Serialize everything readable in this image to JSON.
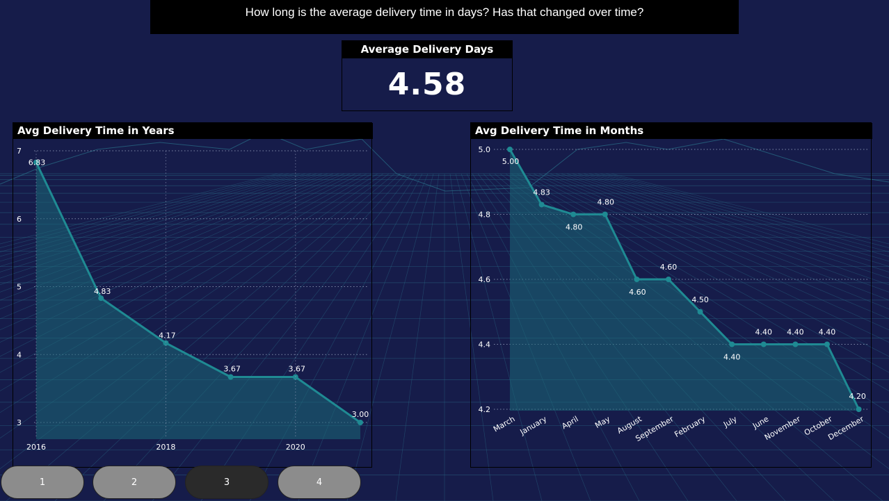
{
  "header": {
    "question": "How long is the average delivery time in days? Has that changed over time?"
  },
  "kpi": {
    "title": "Average Delivery Days",
    "value": "4.58"
  },
  "colors": {
    "background": "#161c4a",
    "line": "#1f8a93",
    "area": "#1c6a78",
    "grid": "#9aa3c0",
    "button": "#8c8c8c",
    "button_active": "#2a2a2a"
  },
  "nav": {
    "buttons": [
      {
        "label": "1",
        "active": false
      },
      {
        "label": "2",
        "active": false
      },
      {
        "label": "3",
        "active": true
      },
      {
        "label": "4",
        "active": false
      }
    ]
  },
  "chart_data": [
    {
      "type": "area",
      "title": "Avg Delivery Time in Years",
      "x": [
        2016,
        2017,
        2018,
        2019,
        2020,
        2021
      ],
      "values": [
        6.83,
        4.83,
        4.17,
        3.67,
        3.67,
        3.0
      ],
      "data_labels": [
        "6.83",
        "4.83",
        "4.17",
        "3.67",
        "3.67",
        "3.00"
      ],
      "x_ticks": [
        "2016",
        "2018",
        "2020"
      ],
      "y_ticks": [
        "3",
        "4",
        "5",
        "6",
        "7"
      ],
      "ylim": [
        3,
        7
      ],
      "xlim": [
        2016,
        2021
      ],
      "grid": true
    },
    {
      "type": "area",
      "title": "Avg Delivery Time in Months",
      "categories": [
        "March",
        "January",
        "April",
        "May",
        "August",
        "September",
        "February",
        "July",
        "June",
        "November",
        "October",
        "December"
      ],
      "values": [
        5.0,
        4.83,
        4.8,
        4.8,
        4.6,
        4.6,
        4.5,
        4.4,
        4.4,
        4.4,
        4.4,
        4.2
      ],
      "data_labels": [
        "5.00",
        "4.83",
        "4.80",
        "4.80",
        "4.60",
        "4.60",
        "4.50",
        "4.40",
        "4.40",
        "4.40",
        "4.40",
        "4.20"
      ],
      "y_ticks": [
        "4.2",
        "4.4",
        "4.6",
        "4.8",
        "5.0"
      ],
      "ylim": [
        4.2,
        5.0
      ],
      "grid": true
    }
  ]
}
